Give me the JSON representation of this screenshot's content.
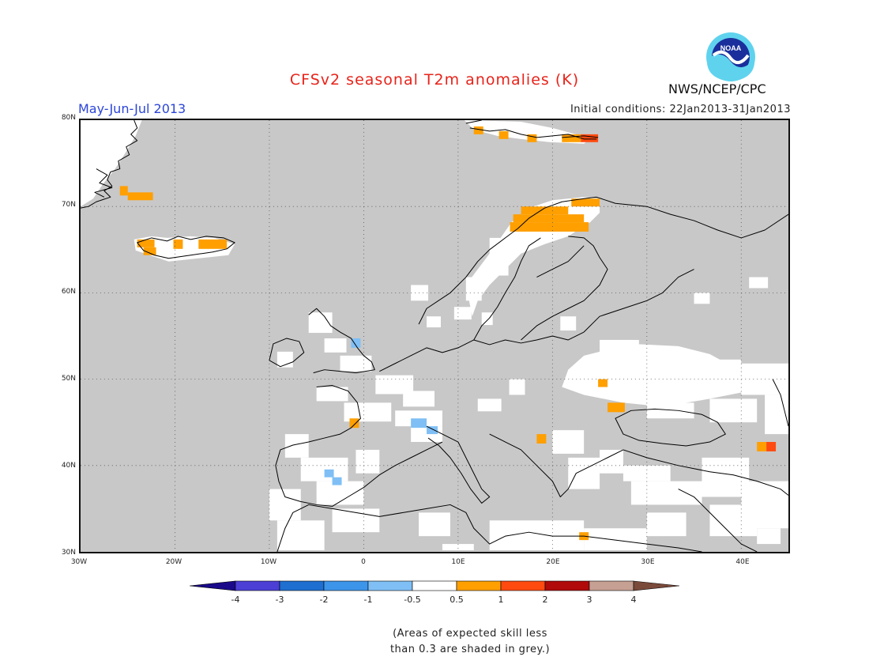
{
  "header": {
    "title": "CFSv2 seasonal T2m anomalies (K)",
    "period": "May-Jun-Jul 2013",
    "initial_conditions": "Initial conditions: 22Jan2013-31Jan2013",
    "agency": "NWS/NCEP/CPC",
    "logo_text": "NOAA"
  },
  "map": {
    "region": "Europe",
    "lat_labels": [
      "80N",
      "70N",
      "60N",
      "50N",
      "40N",
      "30N"
    ],
    "lon_labels": [
      "30W",
      "20W",
      "10W",
      "0",
      "10E",
      "20E",
      "30E",
      "40E"
    ],
    "background_color": "#c8c8c8",
    "coast_color": "#000000"
  },
  "colorbar": {
    "labels": [
      "-4",
      "-3",
      "-2",
      "-1",
      "-0.5",
      "0.5",
      "1",
      "2",
      "3",
      "4"
    ],
    "colors": [
      "#1a0a8a",
      "#4b3fd6",
      "#1e6fd0",
      "#3d95ea",
      "#7fbff5",
      "#ffffff",
      "#ff9f00",
      "#ff4a10",
      "#b00a0a",
      "#c6a093",
      "#7a4a3a"
    ]
  },
  "footer": {
    "note_line1": "(Areas of expected skill less",
    "note_line2": "than 0.3 are shaded in grey.)"
  }
}
